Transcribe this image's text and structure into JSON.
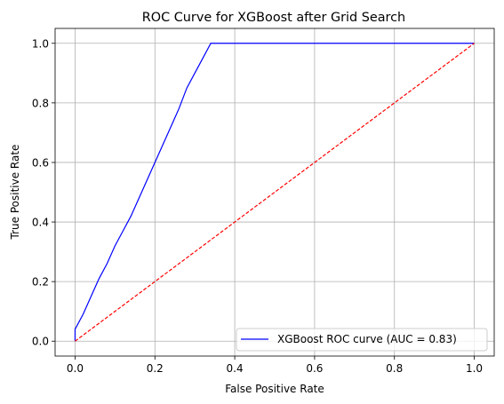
{
  "chart_data": {
    "type": "line",
    "title": "ROC Curve for XGBoost after Grid Search",
    "xlabel": "False Positive Rate",
    "ylabel": "True Positive Rate",
    "xlim": [
      -0.05,
      1.05
    ],
    "ylim": [
      -0.05,
      1.05
    ],
    "xticks": [
      0.0,
      0.2,
      0.4,
      0.6,
      0.8,
      1.0
    ],
    "yticks": [
      0.0,
      0.2,
      0.4,
      0.6,
      0.8,
      1.0
    ],
    "xtick_labels": [
      "0.0",
      "0.2",
      "0.4",
      "0.6",
      "0.8",
      "1.0"
    ],
    "ytick_labels": [
      "0.0",
      "0.2",
      "0.4",
      "0.6",
      "0.8",
      "1.0"
    ],
    "grid": true,
    "legend_position": "lower-right",
    "series": [
      {
        "name": "XGBoost ROC curve (AUC = 0.83)",
        "color": "#0000ff",
        "style": "solid",
        "x": [
          0.0,
          0.0,
          0.02,
          0.04,
          0.06,
          0.08,
          0.1,
          0.12,
          0.14,
          0.16,
          0.18,
          0.2,
          0.22,
          0.24,
          0.26,
          0.28,
          0.3,
          0.32,
          0.34,
          0.36,
          1.0
        ],
        "y": [
          0.0,
          0.04,
          0.09,
          0.15,
          0.21,
          0.26,
          0.32,
          0.37,
          0.42,
          0.48,
          0.54,
          0.6,
          0.66,
          0.72,
          0.78,
          0.85,
          0.9,
          0.95,
          1.0,
          1.0,
          1.0
        ]
      },
      {
        "name": "",
        "color": "#ff0000",
        "style": "dashed",
        "x": [
          0.0,
          1.0
        ],
        "y": [
          0.0,
          1.0
        ]
      }
    ]
  }
}
